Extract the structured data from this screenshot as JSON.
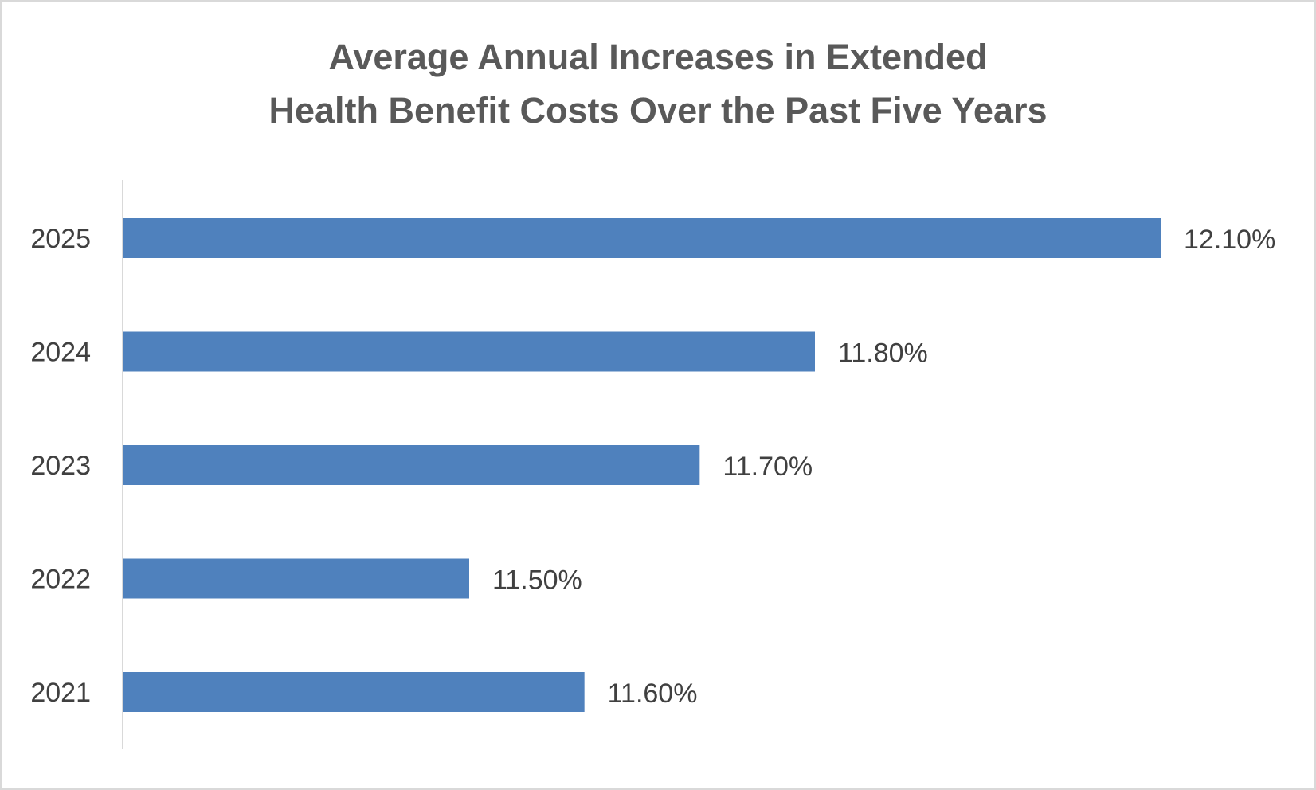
{
  "chart_data": {
    "type": "bar",
    "orientation": "horizontal",
    "title": "Average Annual Increases in Extended Health Benefit Costs Over the Past Five Years",
    "title_lines": [
      "Average Annual Increases in Extended",
      "Health Benefit Costs Over the Past Five Years"
    ],
    "categories": [
      "2025",
      "2024",
      "2023",
      "2022",
      "2021"
    ],
    "values": [
      12.1,
      11.8,
      11.7,
      11.5,
      11.6
    ],
    "value_labels": [
      "12.10%",
      "11.80%",
      "11.70%",
      "11.50%",
      "11.60%"
    ],
    "xlabel": "",
    "ylabel": "",
    "xlim": [
      11.2,
      12.1
    ],
    "grid": false,
    "legend": "none",
    "bar_color": "#4f81bd",
    "axis_color": "#d9d9d9"
  }
}
